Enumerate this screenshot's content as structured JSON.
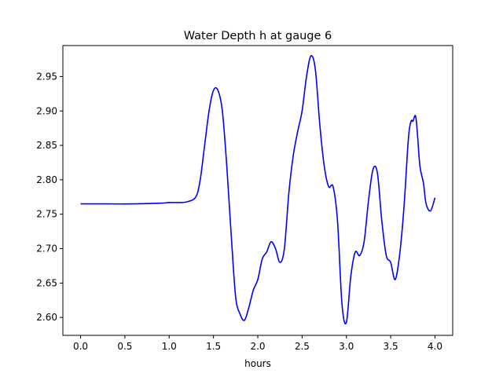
{
  "chart_data": {
    "type": "line",
    "title": "Water Depth h at gauge 6",
    "xlabel": "hours",
    "ylabel": "",
    "xlim": [
      -0.2,
      4.2
    ],
    "ylim": [
      2.574,
      2.995
    ],
    "x_ticks": [
      0.0,
      0.5,
      1.0,
      1.5,
      2.0,
      2.5,
      3.0,
      3.5,
      4.0
    ],
    "x_tick_labels": [
      "0.0",
      "0.5",
      "1.0",
      "1.5",
      "2.0",
      "2.5",
      "3.0",
      "3.5",
      "4.0"
    ],
    "y_ticks": [
      2.6,
      2.65,
      2.7,
      2.75,
      2.8,
      2.85,
      2.9,
      2.95
    ],
    "y_tick_labels": [
      "2.60",
      "2.65",
      "2.70",
      "2.75",
      "2.80",
      "2.85",
      "2.90",
      "2.95"
    ],
    "grid": false,
    "series": [
      {
        "color": "#0000ff",
        "x": [
          0.0,
          0.3,
          0.6,
          0.9,
          1.0,
          1.1,
          1.2,
          1.3,
          1.35,
          1.4,
          1.45,
          1.5,
          1.55,
          1.6,
          1.65,
          1.7,
          1.75,
          1.8,
          1.85,
          1.9,
          1.95,
          2.0,
          2.05,
          2.1,
          2.15,
          2.2,
          2.25,
          2.3,
          2.35,
          2.4,
          2.45,
          2.5,
          2.55,
          2.6,
          2.65,
          2.7,
          2.75,
          2.8,
          2.85,
          2.9,
          2.95,
          3.0,
          3.05,
          3.1,
          3.15,
          3.2,
          3.25,
          3.3,
          3.35,
          3.4,
          3.45,
          3.5,
          3.55,
          3.6,
          3.65,
          3.7,
          3.73,
          3.75,
          3.78,
          3.8,
          3.83,
          3.87,
          3.9,
          3.95,
          4.0
        ],
        "y": [
          2.765,
          2.765,
          2.765,
          2.766,
          2.767,
          2.767,
          2.768,
          2.775,
          2.8,
          2.85,
          2.9,
          2.93,
          2.93,
          2.9,
          2.82,
          2.72,
          2.63,
          2.605,
          2.596,
          2.615,
          2.64,
          2.655,
          2.685,
          2.695,
          2.71,
          2.7,
          2.68,
          2.7,
          2.78,
          2.835,
          2.87,
          2.9,
          2.95,
          2.98,
          2.96,
          2.88,
          2.82,
          2.79,
          2.79,
          2.74,
          2.62,
          2.593,
          2.66,
          2.695,
          2.69,
          2.71,
          2.77,
          2.815,
          2.81,
          2.74,
          2.69,
          2.68,
          2.655,
          2.69,
          2.76,
          2.86,
          2.885,
          2.885,
          2.893,
          2.87,
          2.82,
          2.795,
          2.765,
          2.755,
          2.774
        ]
      }
    ]
  }
}
